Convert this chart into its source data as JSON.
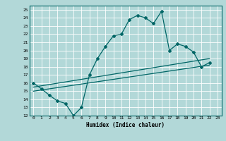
{
  "xlabel": "Humidex (Indice chaleur)",
  "bg_color": "#b2d8d8",
  "line_color": "#006666",
  "grid_color": "#ffffff",
  "xlim": [
    -0.5,
    23.5
  ],
  "ylim": [
    12,
    25.5
  ],
  "xticks": [
    0,
    1,
    2,
    3,
    4,
    5,
    6,
    7,
    8,
    9,
    10,
    11,
    12,
    13,
    14,
    15,
    16,
    17,
    18,
    19,
    20,
    21,
    22,
    23
  ],
  "yticks": [
    12,
    13,
    14,
    15,
    16,
    17,
    18,
    19,
    20,
    21,
    22,
    23,
    24,
    25
  ],
  "curve1_x": [
    0,
    1,
    2,
    3,
    4,
    5,
    6,
    7,
    8,
    9,
    10,
    11,
    12,
    13,
    14,
    15,
    16,
    17,
    18,
    19,
    20,
    21,
    22
  ],
  "curve1_y": [
    16.0,
    15.3,
    14.5,
    13.8,
    13.5,
    12.0,
    13.0,
    17.0,
    19.0,
    20.5,
    21.8,
    22.0,
    23.8,
    24.3,
    24.0,
    23.3,
    24.8,
    20.0,
    20.8,
    20.5,
    19.8,
    18.0,
    18.5
  ],
  "line2_x": [
    0,
    22
  ],
  "line2_y": [
    15.5,
    19.0
  ],
  "line3_x": [
    0,
    22
  ],
  "line3_y": [
    15.0,
    18.2
  ]
}
